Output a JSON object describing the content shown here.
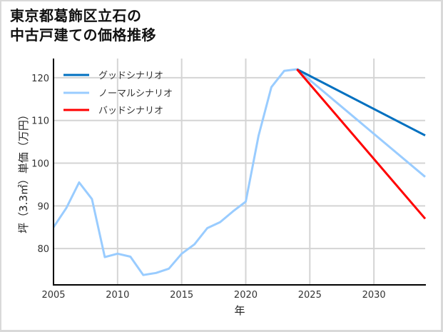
{
  "title": {
    "line1": "東京都葛飾区立石の",
    "line2": "中古戸建ての価格推移"
  },
  "chart_data": {
    "type": "line",
    "title": "東京都葛飾区立石の中古戸建ての価格推移",
    "xlabel": "年",
    "ylabel": "坪（3.3㎡）単価（万円）",
    "xlim": [
      2005,
      2034
    ],
    "ylim": [
      71.5,
      124.5
    ],
    "xticks": [
      2005,
      2010,
      2015,
      2020,
      2025,
      2030
    ],
    "yticks": [
      80,
      90,
      100,
      110,
      120
    ],
    "grid": true,
    "legend_position": "upper left",
    "series": [
      {
        "name": "グッドシナリオ",
        "color": "#0070c0",
        "x": [
          2024,
          2034
        ],
        "values": [
          122.0,
          106.5
        ]
      },
      {
        "name": "ノーマルシナリオ",
        "color": "#99ccff",
        "x": [
          2005,
          2006,
          2007,
          2008,
          2009,
          2010,
          2011,
          2012,
          2013,
          2014,
          2015,
          2016,
          2017,
          2018,
          2019,
          2020,
          2021,
          2022,
          2023,
          2024,
          2034
        ],
        "values": [
          85.0,
          89.5,
          95.5,
          91.6,
          78.0,
          78.8,
          78.1,
          73.8,
          74.3,
          75.3,
          78.8,
          81.0,
          84.8,
          86.2,
          88.7,
          91.0,
          106.4,
          117.8,
          121.6,
          122.0,
          96.8
        ]
      },
      {
        "name": "バッドシナリオ",
        "color": "#ff0000",
        "x": [
          2024,
          2034
        ],
        "values": [
          122.0,
          87.0
        ]
      }
    ]
  },
  "legend": {
    "items": [
      {
        "label": "グッドシナリオ",
        "color": "#0070c0"
      },
      {
        "label": "ノーマルシナリオ",
        "color": "#99ccff"
      },
      {
        "label": "バッドシナリオ",
        "color": "#ff0000"
      }
    ]
  },
  "axes": {
    "xlabel": "年",
    "ylabel": "坪（3.3㎡）単価（万円）",
    "xtick_labels": [
      "2005",
      "2010",
      "2015",
      "2020",
      "2025",
      "2030"
    ],
    "ytick_labels": [
      "80",
      "90",
      "100",
      "110",
      "120"
    ]
  }
}
